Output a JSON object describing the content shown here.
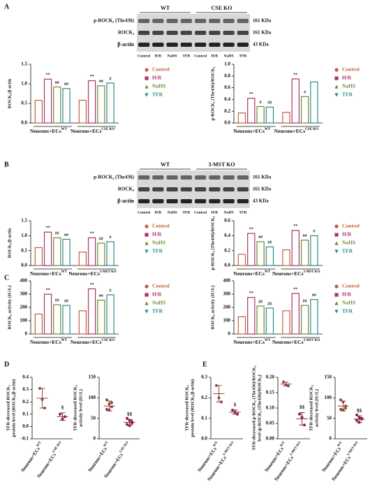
{
  "panel_labels": [
    "A",
    "B",
    "C",
    "D",
    "E"
  ],
  "blots": [
    {
      "groups": [
        "WT",
        "CSE KO"
      ],
      "rows": [
        "p-ROCK₂ (Thr436)",
        "ROCK₂",
        "β-actin"
      ],
      "sizes": [
        "161 KDa",
        "161 KDa",
        "43 KDa"
      ],
      "lanes": [
        "Control",
        "H/R",
        "NaHS",
        "TFR",
        "Control",
        "H/R",
        "NaHS",
        "TFR"
      ]
    },
    {
      "groups": [
        "WT",
        "3-MST KO"
      ],
      "rows": [
        "p-ROCK₂ (Thr436)",
        "ROCK₂",
        "β-actin"
      ],
      "sizes": [
        "161 KDa",
        "161 KDa",
        "43 KDa"
      ],
      "lanes": [
        "Control",
        "H/R",
        "NaHS",
        "TFR",
        "Control",
        "H/R",
        "NaHS",
        "TFR"
      ]
    }
  ],
  "chart_data": [
    {
      "type": "bar",
      "ylabel": "ROCK₂/β-actin",
      "categories": [
        "Neurons+ECs",
        "Neurons+ECs"
      ],
      "category_tags": [
        "WT",
        "CSE KO"
      ],
      "legend": "right",
      "series": [
        {
          "name": "Control",
          "color": "#c0603a",
          "values": [
            0.58,
            0.58
          ],
          "sig_labels": [
            null,
            null
          ]
        },
        {
          "name": "H/R",
          "color": "#b0306a",
          "values": [
            1.12,
            1.08
          ],
          "sig_labels": [
            "**",
            "**"
          ]
        },
        {
          "name": "NaHS",
          "color": "#6a8a2a",
          "values": [
            0.92,
            0.95
          ],
          "sig_labels": [
            "##",
            "##"
          ]
        },
        {
          "name": "TFR",
          "color": "#2a8a8a",
          "values": [
            0.88,
            1.02
          ],
          "sig_labels": [
            "##",
            "#"
          ]
        }
      ],
      "ylim": [
        0,
        1.5
      ],
      "yticks": [
        {
          "value": 0,
          "label": "0.0"
        },
        0.5,
        {
          "value": 1,
          "label": "1.0"
        },
        1.5
      ]
    },
    {
      "type": "bar",
      "ylabel": "p-ROCK₂ (Thr436)/ROCK₂",
      "categories": [
        "Neurons+ECs",
        "Neurons+ECs"
      ],
      "category_tags": [
        "WT",
        "CSE KO"
      ],
      "legend": "right",
      "series": [
        {
          "name": "Control",
          "color": "#c0603a",
          "values": [
            0.17,
            0.18
          ],
          "sig_labels": [
            null,
            null
          ]
        },
        {
          "name": "H/R",
          "color": "#b0306a",
          "values": [
            0.42,
            0.75
          ],
          "sig_labels": [
            "**",
            "**"
          ]
        },
        {
          "name": "NaHS",
          "color": "#6a8a2a",
          "values": [
            0.28,
            0.45
          ],
          "sig_labels": [
            "#",
            "#"
          ]
        },
        {
          "name": "TFR",
          "color": "#2a8a8a",
          "values": [
            0.27,
            0.7
          ],
          "sig_labels": [
            "##",
            null
          ]
        }
      ],
      "ylim": [
        0,
        1
      ],
      "yticks": [
        {
          "value": 0,
          "label": "0.0"
        },
        0.2,
        0.4,
        0.6,
        0.8,
        {
          "value": 1,
          "label": "1.0"
        }
      ]
    },
    {
      "type": "bar",
      "ylabel": "ROCK₂/β-actin",
      "categories": [
        "Neurons+ECs",
        "Neurons+ECs"
      ],
      "category_tags": [
        "WT",
        "3-MST KO"
      ],
      "legend": "right",
      "series": [
        {
          "name": "Control",
          "color": "#c0603a",
          "values": [
            0.6,
            0.45
          ],
          "sig_labels": [
            null,
            null
          ]
        },
        {
          "name": "H/R",
          "color": "#b0306a",
          "values": [
            1.12,
            0.93
          ],
          "sig_labels": [
            "**",
            "**"
          ]
        },
        {
          "name": "NaHS",
          "color": "#6a8a2a",
          "values": [
            0.93,
            0.75
          ],
          "sig_labels": [
            "##",
            "##"
          ]
        },
        {
          "name": "TFR",
          "color": "#2a8a8a",
          "values": [
            0.88,
            0.8
          ],
          "sig_labels": [
            "##",
            "#"
          ]
        }
      ],
      "ylim": [
        0,
        1.5
      ],
      "yticks": [
        {
          "value": 0,
          "label": "0.0"
        },
        0.5,
        {
          "value": 1,
          "label": "1.0"
        },
        1.5
      ]
    },
    {
      "type": "bar",
      "ylabel": "p-ROCK₂ (Thr436)/ROCK₂",
      "categories": [
        "Neurons+ECs",
        "Neurons+ECs"
      ],
      "category_tags": [
        "WT",
        "3-MST KO"
      ],
      "legend": "right",
      "series": [
        {
          "name": "Control",
          "color": "#c0603a",
          "values": [
            0.15,
            0.21
          ],
          "sig_labels": [
            null,
            null
          ]
        },
        {
          "name": "H/R",
          "color": "#b0306a",
          "values": [
            0.43,
            0.47
          ],
          "sig_labels": [
            "**",
            "**"
          ]
        },
        {
          "name": "NaHS",
          "color": "#6a8a2a",
          "values": [
            0.32,
            0.34
          ],
          "sig_labels": [
            "##",
            "##"
          ]
        },
        {
          "name": "TFR",
          "color": "#2a8a8a",
          "values": [
            0.25,
            0.4
          ],
          "sig_labels": [
            "##",
            "#"
          ]
        }
      ],
      "ylim": [
        0,
        0.6
      ],
      "yticks": [
        {
          "value": 0,
          "label": "0.0"
        },
        0.2,
        0.4,
        0.6
      ]
    },
    {
      "type": "bar",
      "ylabel": "ROCK₂ activity (IU/L)",
      "categories": [
        "Neurons+ECs",
        "Neurons+ECs"
      ],
      "category_tags": [
        "WT",
        "CSE KO"
      ],
      "legend": "right",
      "series": [
        {
          "name": "Control",
          "color": "#c0603a",
          "values": [
            150,
            175
          ],
          "sig_labels": [
            null,
            null
          ]
        },
        {
          "name": "H/R",
          "color": "#b0306a",
          "values": [
            300,
            340
          ],
          "sig_labels": [
            "**",
            "**"
          ]
        },
        {
          "name": "NaHS",
          "color": "#6a8a2a",
          "values": [
            220,
            255
          ],
          "sig_labels": [
            "##",
            "##"
          ]
        },
        {
          "name": "TFR",
          "color": "#2a8a8a",
          "values": [
            215,
            295
          ],
          "sig_labels": [
            "##",
            "#"
          ]
        }
      ],
      "ylim": [
        0,
        400
      ],
      "yticks": [
        0,
        100,
        200,
        300,
        400
      ]
    },
    {
      "type": "bar",
      "ylabel": "ROCK₂ activity (IU/L)",
      "categories": [
        "Neurons+ECs",
        "Neurons+ECs"
      ],
      "category_tags": [
        "WT",
        "3-MST KO"
      ],
      "legend": "right",
      "series": [
        {
          "name": "Control",
          "color": "#c0603a",
          "values": [
            130,
            175
          ],
          "sig_labels": [
            null,
            null
          ]
        },
        {
          "name": "H/R",
          "color": "#b0306a",
          "values": [
            275,
            305
          ],
          "sig_labels": [
            "**",
            "**"
          ]
        },
        {
          "name": "NaHS",
          "color": "#6a8a2a",
          "values": [
            210,
            215
          ],
          "sig_labels": [
            "##",
            "##"
          ]
        },
        {
          "name": "TFR",
          "color": "#2a8a8a",
          "values": [
            195,
            260
          ],
          "sig_labels": [
            "##",
            "##"
          ]
        }
      ],
      "ylim": [
        0,
        400
      ],
      "yticks": [
        0,
        100,
        200,
        300,
        400
      ]
    },
    {
      "type": "dot",
      "ylabel": [
        "TFR-decreased ROCK₂",
        "protein level (ROCK₂/β-actin)"
      ],
      "categories": [
        "Neurons+ECs",
        "Neurons+ECs"
      ],
      "category_tags": [
        "WT",
        "CSE KO"
      ],
      "colors": [
        "#8b4a3a",
        "#8a2050"
      ],
      "means": [
        0.23,
        0.08
      ],
      "errors": [
        0.08,
        0.03
      ],
      "points": [
        [
          0.31,
          0.22,
          0.15
        ],
        [
          0.1,
          0.06,
          0.08
        ]
      ],
      "sig_labels": [
        null,
        "$"
      ],
      "ylim": [
        -0.1,
        0.4
      ],
      "yticks": [
        -0.1,
        {
          "value": 0,
          "label": "0.0"
        },
        0.1,
        0.2,
        0.3,
        0.4
      ]
    },
    {
      "type": "dot",
      "ylabel": [
        "TFR-decreased ROCK₂",
        "activity level (IU/L)"
      ],
      "categories": [
        "Neurons+ECs",
        "Neurons+ECs"
      ],
      "category_tags": [
        "WT",
        "CSE KO"
      ],
      "colors": [
        "#8b4a3a",
        "#8a2050"
      ],
      "means": [
        80,
        40
      ],
      "errors": [
        12,
        7
      ],
      "points": [
        [
          95,
          85,
          78,
          72,
          70,
          88
        ],
        [
          50,
          45,
          38,
          35,
          32,
          42
        ]
      ],
      "sig_labels": [
        null,
        "$$"
      ],
      "ylim": [
        0,
        150
      ],
      "yticks": [
        0,
        50,
        100,
        150
      ]
    },
    {
      "type": "dot",
      "ylabel": [
        "TFR-decreased ROCK₂",
        "protein level (ROCK₂/β-actin)"
      ],
      "categories": [
        "Neurons+ECs",
        "Neurons+ECs"
      ],
      "category_tags": [
        "WT",
        "3-MST KO"
      ],
      "colors": [
        "#8b4a3a",
        "#8a2050"
      ],
      "means": [
        0.22,
        0.13
      ],
      "errors": [
        0.04,
        0.01
      ],
      "points": [
        [
          0.26,
          0.2,
          0.18
        ],
        [
          0.14,
          0.13,
          0.12
        ]
      ],
      "sig_labels": [
        null,
        "$"
      ],
      "ylim": [
        0,
        0.3
      ],
      "yticks": [
        {
          "value": 0,
          "label": "0.0"
        },
        0.1,
        0.2,
        0.3
      ]
    },
    {
      "type": "dot",
      "ylabel": [
        "TFR-decreased p-ROCK₂ (Thr436)/ROCK₂",
        "level (p-ROCK₂ (Thr436)/ROCK₂)"
      ],
      "categories": [
        "Neurons+ECs",
        "Neurons+ECs"
      ],
      "category_tags": [
        "WT",
        "3-MST KO"
      ],
      "colors": [
        "#8b4a3a",
        "#8a2050"
      ],
      "means": [
        0.178,
        0.065
      ],
      "errors": [
        0.006,
        0.02
      ],
      "points": [
        [
          0.185,
          0.175,
          0.172
        ],
        [
          0.08,
          0.07,
          0.045
        ]
      ],
      "sig_labels": [
        null,
        "$$"
      ],
      "ylim": [
        0,
        0.2
      ],
      "yticks": [
        {
          "value": 0,
          "label": "0.00"
        },
        0.05,
        {
          "value": 0.1,
          "label": "0.10"
        },
        0.15,
        {
          "value": 0.2,
          "label": "0.20"
        }
      ]
    },
    {
      "type": "dot",
      "ylabel": [
        "TFR-decreased ROCK₂",
        "activity level (IU/L)"
      ],
      "categories": [
        "Neurons+ECs",
        "Neurons+ECs"
      ],
      "category_tags": [
        "WT",
        "3-MST KO"
      ],
      "colors": [
        "#8b4a3a",
        "#8a2050"
      ],
      "means": [
        80,
        48
      ],
      "errors": [
        12,
        8
      ],
      "points": [
        [
          95,
          90,
          80,
          72,
          70,
          75
        ],
        [
          58,
          52,
          48,
          45,
          40,
          50
        ]
      ],
      "sig_labels": [
        null,
        "$$"
      ],
      "ylim": [
        0,
        150
      ],
      "yticks": [
        0,
        50,
        100,
        150
      ]
    }
  ]
}
